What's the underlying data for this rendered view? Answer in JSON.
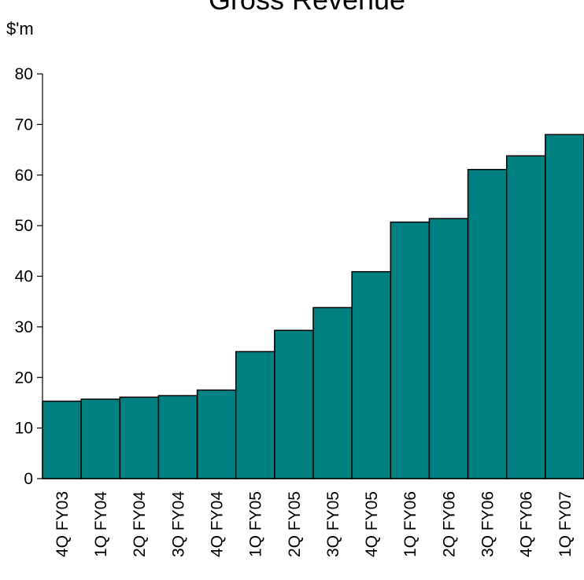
{
  "chart_data": {
    "type": "bar",
    "title": "Gross Revenue",
    "ylabel": "$'m",
    "xlabel": "",
    "categories": [
      "4Q FY03",
      "1Q FY04",
      "2Q FY04",
      "3Q FY04",
      "4Q FY04",
      "1Q FY05",
      "2Q FY05",
      "3Q FY05",
      "4Q FY05",
      "1Q FY06",
      "2Q FY06",
      "3Q FY06",
      "4Q FY06",
      "1Q FY07"
    ],
    "values": [
      15.3,
      15.7,
      16.1,
      16.4,
      17.5,
      25.1,
      29.3,
      33.8,
      40.9,
      50.7,
      51.4,
      61.1,
      63.8,
      68.0
    ],
    "ylim": [
      0,
      80
    ],
    "yticks": [
      0,
      10,
      20,
      30,
      40,
      50,
      60,
      70,
      80
    ],
    "grid": false,
    "legend": "none",
    "bar_color": "#008080",
    "bar_border_color": "#000000"
  }
}
